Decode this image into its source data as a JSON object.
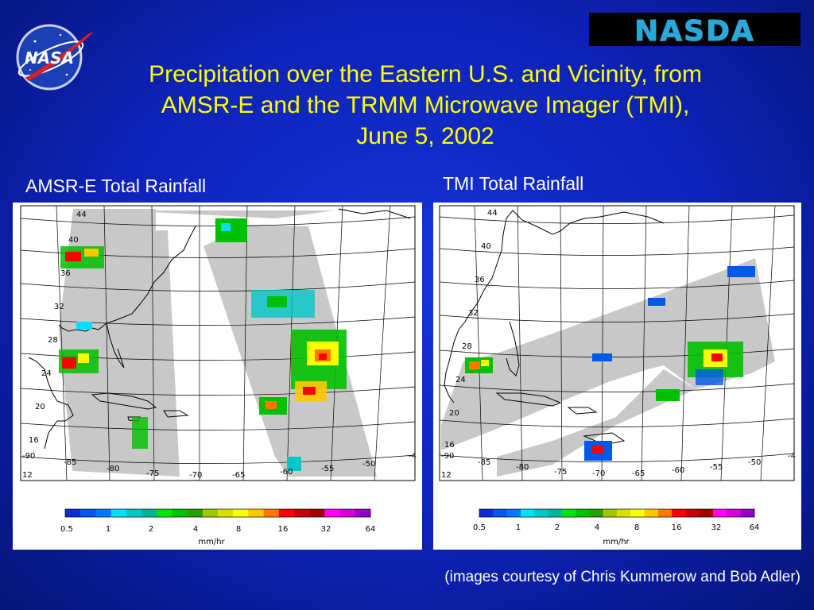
{
  "slide": {
    "title_line1": "Precipitation over the Eastern U.S. and Vicinity, from",
    "title_line2": "AMSR-E and the TRMM Microwave Imager (TMI),",
    "title_line3": "June 5, 2002",
    "credit": "(images courtesy of Chris Kummerow and Bob Adler)"
  },
  "logos": {
    "nasa_text": "NASA",
    "nasda_text": "NASDA"
  },
  "panels": [
    {
      "label": "AMSR-E Total Rainfall",
      "lat_labels": [
        "44",
        "40",
        "36",
        "32",
        "28",
        "24",
        "20",
        "16",
        "12"
      ],
      "lon_labels": [
        "-90",
        "-85",
        "-80",
        "-75",
        "-70",
        "-65",
        "-60",
        "-55",
        "-50",
        "-4"
      ]
    },
    {
      "label": "TMI Total Rainfall",
      "lat_labels": [
        "44",
        "40",
        "36",
        "32",
        "28",
        "24",
        "20",
        "16",
        "12"
      ],
      "lon_labels": [
        "-90",
        "-85",
        "-80",
        "-75",
        "-70",
        "-65",
        "-60",
        "-55",
        "-50",
        "-4"
      ]
    }
  ],
  "colorbar": {
    "unit": "mm/hr",
    "ticks": [
      "0.5",
      "1",
      "2",
      "4",
      "8",
      "16",
      "32",
      "64"
    ],
    "colors": [
      "#0a2fd0",
      "#0059e8",
      "#0078ff",
      "#00e0ff",
      "#00c8c8",
      "#00b49b",
      "#00e600",
      "#00c000",
      "#22a000",
      "#a0c800",
      "#d8e000",
      "#ffff00",
      "#ffc800",
      "#ff7800",
      "#ff0000",
      "#c80000",
      "#a00000",
      "#ff00ff",
      "#d200d2",
      "#9600c8"
    ]
  }
}
